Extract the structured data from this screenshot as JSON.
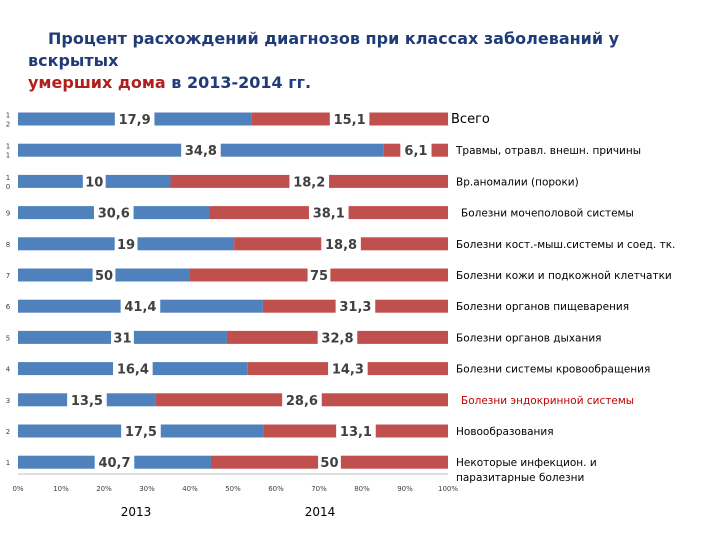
{
  "title": {
    "part1": "Процент расхождений диагнозов при классах заболеваний у вскрытых",
    "part2_red": "умерших дома",
    "part3": "в 2013-2014 гг."
  },
  "chart_data": {
    "type": "bar",
    "orientation": "horizontal",
    "stacked": "percent",
    "title": "Процент расхождений диагнозов при классах заболеваний у вскрытых умерших дома в 2013-2014 гг.",
    "xlim": [
      0,
      100
    ],
    "x_ticks": [
      "0%",
      "10%",
      "20%",
      "30%",
      "40%",
      "50%",
      "60%",
      "70%",
      "80%",
      "90%",
      "100%"
    ],
    "y_ticks": [
      "1",
      "2",
      "3",
      "4",
      "5",
      "6",
      "7",
      "8",
      "9",
      "10",
      "11",
      "12"
    ],
    "legend": [
      "2013",
      "2014"
    ],
    "series_colors": [
      "#4f81bd",
      "#c0504d"
    ],
    "categories": [
      {
        "tick": "12",
        "label": "Всего",
        "v2013": "17,9",
        "v2014": "15,1",
        "n2013": 17.9,
        "n2014": 15.1,
        "color": "#000000"
      },
      {
        "tick": "11",
        "label": "Травмы, отравл. внешн. причины",
        "v2013": "34,8",
        "v2014": "6,1",
        "n2013": 34.8,
        "n2014": 6.1,
        "color": "#000000"
      },
      {
        "tick": "10",
        "label": "Вр.аномалии (пороки)",
        "v2013": "10",
        "v2014": "18,2",
        "n2013": 10,
        "n2014": 18.2,
        "color": "#000000"
      },
      {
        "tick": "9",
        "label": "Болезни мочеполовой системы",
        "v2013": "30,6",
        "v2014": "38,1",
        "n2013": 30.6,
        "n2014": 38.1,
        "color": "#000000"
      },
      {
        "tick": "8",
        "label": "Болезни кост.-мыш.системы и соед. тк.",
        "v2013": "19",
        "v2014": "18,8",
        "n2013": 19,
        "n2014": 18.8,
        "color": "#000000"
      },
      {
        "tick": "7",
        "label": "Болезни кожи и подкожной клетчатки",
        "v2013": "50",
        "v2014": "75",
        "n2013": 50,
        "n2014": 75,
        "color": "#000000"
      },
      {
        "tick": "6",
        "label": "Болезни органов пищеварения",
        "v2013": "41,4",
        "v2014": "31,3",
        "n2013": 41.4,
        "n2014": 31.3,
        "color": "#000000"
      },
      {
        "tick": "5",
        "label": "Болезни органов дыхания",
        "v2013": "31",
        "v2014": "32,8",
        "n2013": 31,
        "n2014": 32.8,
        "color": "#000000"
      },
      {
        "tick": "4",
        "label": "Болезни системы кровообращения",
        "v2013": "16,4",
        "v2014": "14,3",
        "n2013": 16.4,
        "n2014": 14.3,
        "color": "#000000"
      },
      {
        "tick": "3",
        "label": "Болезни эндокринной системы",
        "v2013": "13,5",
        "v2014": "28,6",
        "n2013": 13.5,
        "n2014": 28.6,
        "color": "#c00000"
      },
      {
        "tick": "2",
        "label": "Новообразования",
        "v2013": "17,5",
        "v2014": "13,1",
        "n2013": 17.5,
        "n2014": 13.1,
        "color": "#000000"
      },
      {
        "tick": "1",
        "label": "Некоторые инфекцион. и паразитарные болезни",
        "v2013": "40,7",
        "v2014": "50",
        "n2013": 40.7,
        "n2014": 50,
        "color": "#000000"
      }
    ]
  }
}
